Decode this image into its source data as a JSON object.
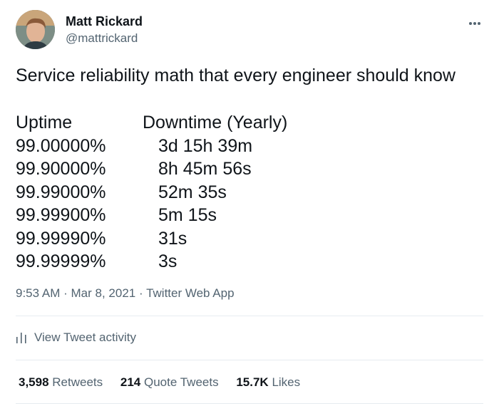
{
  "author": {
    "display_name": "Matt Rickard",
    "handle": "@mattrickard",
    "avatar_icon": "profile-photo"
  },
  "tweet": {
    "text": "Service reliability math that every engineer should know",
    "table": {
      "headers": [
        "Uptime",
        "Downtime (Yearly)"
      ],
      "rows": [
        [
          "99.00000%",
          "3d 15h 39m"
        ],
        [
          "99.90000%",
          "8h 45m 56s"
        ],
        [
          "99.99000%",
          "52m 35s"
        ],
        [
          "99.99900%",
          "5m 15s"
        ],
        [
          "99.99990%",
          "31s"
        ],
        [
          "99.99999%",
          "3s"
        ]
      ]
    },
    "time": "9:53 AM",
    "separator": "·",
    "date": "Mar 8, 2021",
    "source": "Twitter Web App"
  },
  "activity": {
    "label": "View Tweet activity",
    "icon": "bar-chart-icon"
  },
  "stats": {
    "retweets_count": "3,598",
    "retweets_label": "Retweets",
    "quotes_count": "214",
    "quotes_label": "Quote Tweets",
    "likes_count": "15.7K",
    "likes_label": "Likes"
  },
  "colors": {
    "text_primary": "#0f1419",
    "text_secondary": "#536471",
    "divider": "#e6ecf0"
  }
}
